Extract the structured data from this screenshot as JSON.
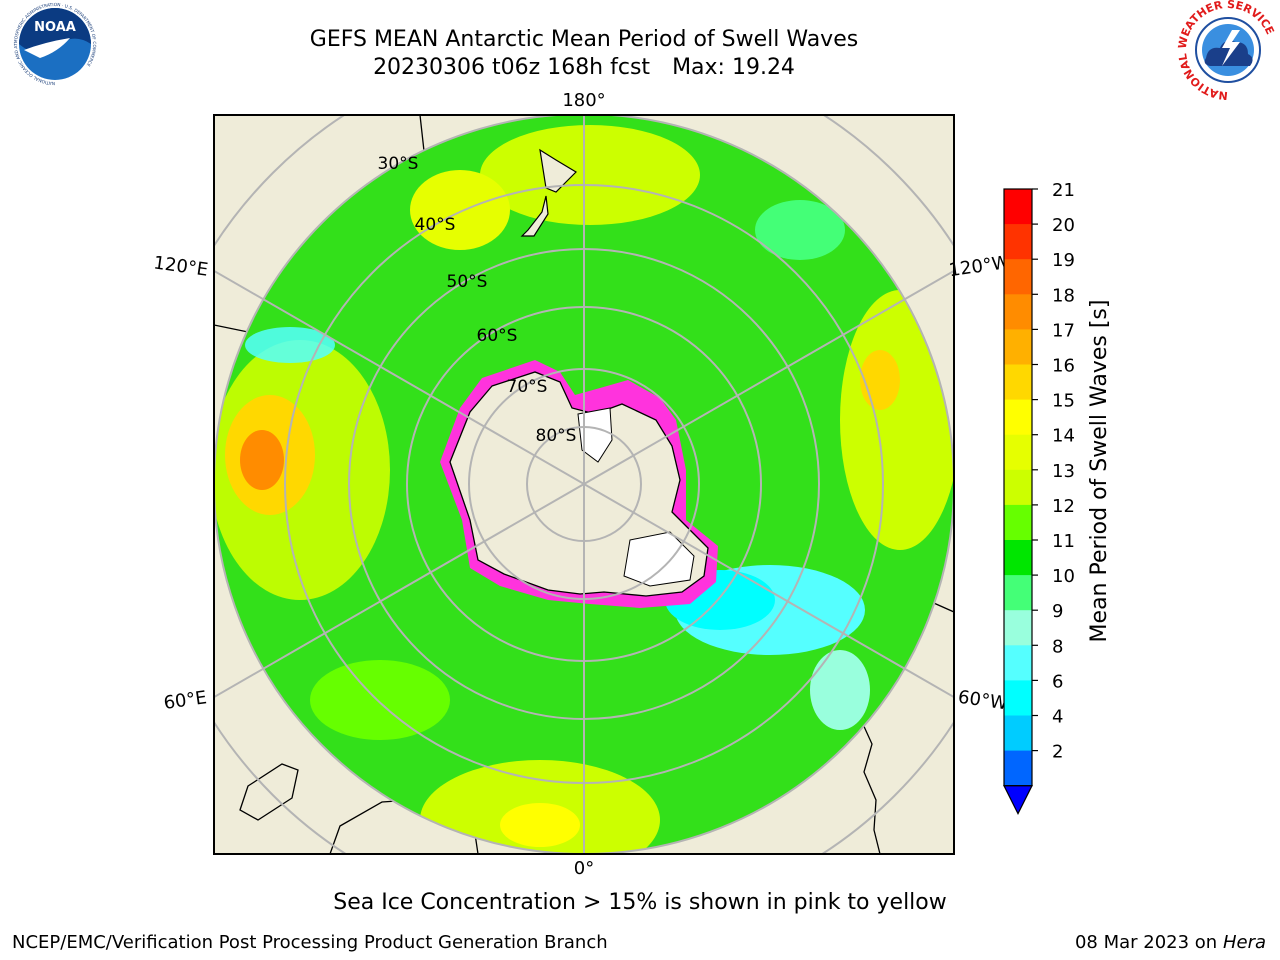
{
  "header": {
    "title_line1": "GEFS MEAN Antarctic Mean Period of Swell Waves",
    "title_run": "20230306 t06z 168h fcst",
    "title_max": "Max: 19.24"
  },
  "map": {
    "projection": "south-polar-stereographic",
    "longitude_labels": {
      "top": "180°",
      "bottom": "0°",
      "upper_left": "120°E",
      "upper_right": "120°W",
      "lower_left": "60°E",
      "lower_right": "60°W"
    },
    "latitude_labels": [
      "30°S",
      "40°S",
      "50°S",
      "60°S",
      "70°S",
      "80°S"
    ],
    "colors": {
      "land": "#efecd9",
      "ocean_dominant": "#33e01a",
      "sea_ice": "#ff33dd",
      "grid": "#b4b4b4"
    }
  },
  "colorbar": {
    "label": "Mean Period of Swell Waves [s]",
    "ticks": [
      "21",
      "20",
      "19",
      "18",
      "17",
      "16",
      "15",
      "14",
      "13",
      "12",
      "11",
      "10",
      "9",
      "8",
      "6",
      "4",
      "2"
    ],
    "colors": [
      "#ff0000",
      "#ff3300",
      "#ff6600",
      "#ff8c00",
      "#ffb000",
      "#ffd800",
      "#ffff00",
      "#e6ff00",
      "#ccff00",
      "#66ff00",
      "#00e600",
      "#44ff77",
      "#99ffdd",
      "#55ffff",
      "#00ffff",
      "#00ccff",
      "#0066ff"
    ],
    "under_color": "#0000ff"
  },
  "caption": "Sea Ice Concentration > 15% is shown in pink to yellow",
  "footer": {
    "left": "NCEP/EMC/Verification Post Processing Product Generation Branch",
    "right_date": "08 Mar 2023 on",
    "right_host": "Hera"
  },
  "logos": {
    "noaa": "NOAA",
    "noaa_ring": "NATIONAL OCEANIC AND ATMOSPHERIC ADMINISTRATION · U.S. DEPARTMENT OF COMMERCE",
    "nws_ring": "NATIONAL WEATHER SERVICE"
  }
}
